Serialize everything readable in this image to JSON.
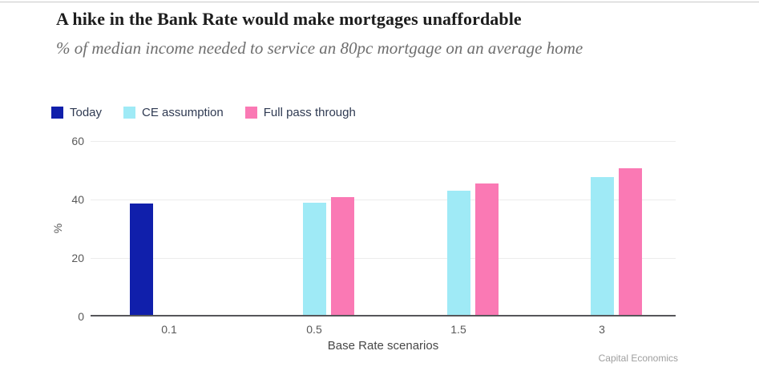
{
  "header": {
    "title": "A hike in the Bank Rate would make mortgages unaffordable",
    "subtitle": "% of median income needed to service an 80pc mortgage on an average home"
  },
  "chart_data": {
    "type": "bar",
    "title": "A hike in the Bank Rate would make mortgages unaffordable",
    "subtitle": "% of median income needed to service an 80pc mortgage on an average home",
    "categories": [
      "0.1",
      "0.5",
      "1.5",
      "3"
    ],
    "series": [
      {
        "name": "Today",
        "color": "#101fab",
        "values": [
          38,
          null,
          null,
          null
        ]
      },
      {
        "name": "CE assumption",
        "color": "#9feaf6",
        "values": [
          null,
          38.3,
          42.5,
          47
        ]
      },
      {
        "name": "Full pass through",
        "color": "#fa79b4",
        "values": [
          null,
          40.3,
          45,
          50
        ]
      }
    ],
    "xlabel": "Base Rate scenarios",
    "ylabel": "%",
    "ylim": [
      0,
      60
    ],
    "yticks": [
      0,
      20,
      40,
      60
    ],
    "grid": true,
    "legend_position": "top"
  },
  "footer": {
    "source": "Capital Economics"
  },
  "colors": {
    "today": "#101fab",
    "ce_assumption": "#9feaf6",
    "full_pass_through": "#fa79b4",
    "axis_line": "#56565a",
    "gridline": "#ececec"
  }
}
